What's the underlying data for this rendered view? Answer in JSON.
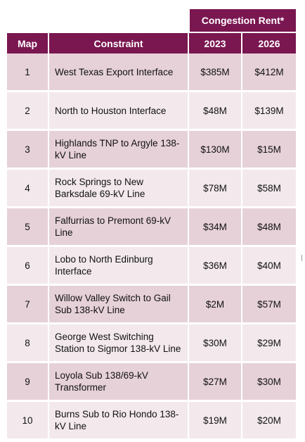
{
  "header": {
    "group_label": "Congestion Rent*",
    "col_map": "Map",
    "col_constraint": "Constraint",
    "col_2023": "2023",
    "col_2026": "2026"
  },
  "colors": {
    "header_bg": "#7a1650",
    "row_dark": "#e6d1d9",
    "row_light": "#f3e9ed"
  },
  "rows": [
    {
      "map": "1",
      "constraint": "West Texas Export Interface",
      "y2023": "$385M",
      "y2026": "$412M"
    },
    {
      "map": "2",
      "constraint": "North to Houston Interface",
      "y2023": "$48M",
      "y2026": "$139M"
    },
    {
      "map": "3",
      "constraint": "Highlands TNP to Argyle 138-kV Line",
      "y2023": "$130M",
      "y2026": "$15M"
    },
    {
      "map": "4",
      "constraint": "Rock Springs to New Barksdale 69-kV Line",
      "y2023": "$78M",
      "y2026": "$58M"
    },
    {
      "map": "5",
      "constraint": "Falfurrias to Premont 69-kV Line",
      "y2023": "$34M",
      "y2026": "$48M"
    },
    {
      "map": "6",
      "constraint": "Lobo to North Edinburg Interface",
      "y2023": "$36M",
      "y2026": "$40M"
    },
    {
      "map": "7",
      "constraint": "Willow Valley Switch to Gail Sub 138-kV Line",
      "y2023": "$2M",
      "y2026": "$57M"
    },
    {
      "map": "8",
      "constraint": "George West Switching Station to Sigmor 138-kV Line",
      "y2023": "$30M",
      "y2026": "$29M"
    },
    {
      "map": "9",
      "constraint": "Loyola Sub 138/69-kV Transformer",
      "y2023": "$27M",
      "y2026": "$30M"
    },
    {
      "map": "10",
      "constraint": "Burns Sub to Rio Hondo 138-kV Line",
      "y2023": "$19M",
      "y2026": "$20M"
    }
  ]
}
